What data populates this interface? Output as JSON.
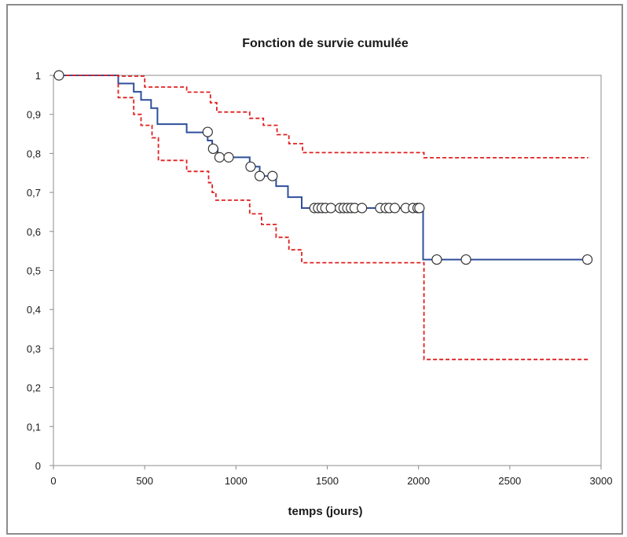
{
  "chart_data": {
    "type": "line",
    "title": "Fonction de survie cumulée",
    "xlabel": "temps (jours)",
    "ylabel": "",
    "xlim": [
      0,
      3000
    ],
    "ylim": [
      0,
      1
    ],
    "x_ticks": [
      0,
      500,
      1000,
      1500,
      2000,
      2500,
      3000
    ],
    "y_ticks": [
      0,
      0.1,
      0.2,
      0.3,
      0.4,
      0.5,
      0.6,
      0.7,
      0.8,
      0.9,
      1
    ],
    "y_tick_labels": [
      "0",
      "0,1",
      "0,2",
      "0,3",
      "0,4",
      "0,5",
      "0,6",
      "0,7",
      "0,8",
      "0,9",
      "1"
    ],
    "grid": false,
    "legend": "none",
    "series": [
      {
        "style": "step-solid",
        "color": "#2f4f9a",
        "points": [
          [
            0,
            1
          ],
          [
            355,
            1
          ],
          [
            355,
            0.979
          ],
          [
            440,
            0.979
          ],
          [
            440,
            0.958
          ],
          [
            480,
            0.958
          ],
          [
            480,
            0.937
          ],
          [
            535,
            0.937
          ],
          [
            535,
            0.916
          ],
          [
            570,
            0.916
          ],
          [
            570,
            0.875
          ],
          [
            730,
            0.875
          ],
          [
            730,
            0.854
          ],
          [
            845,
            0.854
          ],
          [
            845,
            0.833
          ],
          [
            870,
            0.833
          ],
          [
            870,
            0.812
          ],
          [
            900,
            0.812
          ],
          [
            900,
            0.79
          ],
          [
            1075,
            0.79
          ],
          [
            1075,
            0.766
          ],
          [
            1130,
            0.766
          ],
          [
            1130,
            0.742
          ],
          [
            1220,
            0.742
          ],
          [
            1220,
            0.716
          ],
          [
            1285,
            0.716
          ],
          [
            1285,
            0.688
          ],
          [
            1360,
            0.688
          ],
          [
            1360,
            0.66
          ],
          [
            2025,
            0.66
          ],
          [
            2025,
            0.528
          ],
          [
            2930,
            0.528
          ]
        ]
      },
      {
        "style": "step-dashed",
        "color": "#e02020",
        "points": [
          [
            0,
            1
          ],
          [
            355,
            1
          ],
          [
            355,
            0.998
          ],
          [
            500,
            0.998
          ],
          [
            500,
            0.97
          ],
          [
            730,
            0.97
          ],
          [
            730,
            0.957
          ],
          [
            860,
            0.957
          ],
          [
            860,
            0.93
          ],
          [
            895,
            0.93
          ],
          [
            895,
            0.906
          ],
          [
            1075,
            0.906
          ],
          [
            1075,
            0.89
          ],
          [
            1150,
            0.89
          ],
          [
            1150,
            0.872
          ],
          [
            1225,
            0.872
          ],
          [
            1225,
            0.848
          ],
          [
            1290,
            0.848
          ],
          [
            1290,
            0.825
          ],
          [
            1365,
            0.825
          ],
          [
            1365,
            0.802
          ],
          [
            2030,
            0.802
          ],
          [
            2030,
            0.789
          ],
          [
            2930,
            0.789
          ]
        ]
      },
      {
        "style": "step-dashed",
        "color": "#e02020",
        "points": [
          [
            355,
            0.979
          ],
          [
            355,
            0.943
          ],
          [
            440,
            0.943
          ],
          [
            440,
            0.9
          ],
          [
            480,
            0.9
          ],
          [
            480,
            0.872
          ],
          [
            540,
            0.872
          ],
          [
            540,
            0.84
          ],
          [
            575,
            0.84
          ],
          [
            575,
            0.782
          ],
          [
            730,
            0.782
          ],
          [
            730,
            0.754
          ],
          [
            850,
            0.754
          ],
          [
            850,
            0.725
          ],
          [
            870,
            0.725
          ],
          [
            870,
            0.7
          ],
          [
            890,
            0.7
          ],
          [
            890,
            0.68
          ],
          [
            1075,
            0.68
          ],
          [
            1075,
            0.645
          ],
          [
            1140,
            0.645
          ],
          [
            1140,
            0.618
          ],
          [
            1220,
            0.618
          ],
          [
            1220,
            0.585
          ],
          [
            1290,
            0.585
          ],
          [
            1290,
            0.553
          ],
          [
            1360,
            0.553
          ],
          [
            1360,
            0.52
          ],
          [
            2030,
            0.52
          ],
          [
            2030,
            0.272
          ],
          [
            2930,
            0.272
          ]
        ]
      }
    ],
    "censored": [
      [
        30,
        1
      ],
      [
        845,
        0.855
      ],
      [
        875,
        0.812
      ],
      [
        910,
        0.79
      ],
      [
        960,
        0.79
      ],
      [
        1080,
        0.766
      ],
      [
        1130,
        0.742
      ],
      [
        1200,
        0.742
      ],
      [
        1430,
        0.66
      ],
      [
        1450,
        0.66
      ],
      [
        1470,
        0.66
      ],
      [
        1490,
        0.66
      ],
      [
        1520,
        0.66
      ],
      [
        1570,
        0.66
      ],
      [
        1590,
        0.66
      ],
      [
        1610,
        0.66
      ],
      [
        1630,
        0.66
      ],
      [
        1650,
        0.66
      ],
      [
        1690,
        0.66
      ],
      [
        1790,
        0.66
      ],
      [
        1820,
        0.66
      ],
      [
        1840,
        0.66
      ],
      [
        1870,
        0.66
      ],
      [
        1930,
        0.66
      ],
      [
        1970,
        0.66
      ],
      [
        1995,
        0.66
      ],
      [
        2005,
        0.66
      ],
      [
        2100,
        0.528
      ],
      [
        2260,
        0.528
      ],
      [
        2925,
        0.528
      ]
    ]
  }
}
